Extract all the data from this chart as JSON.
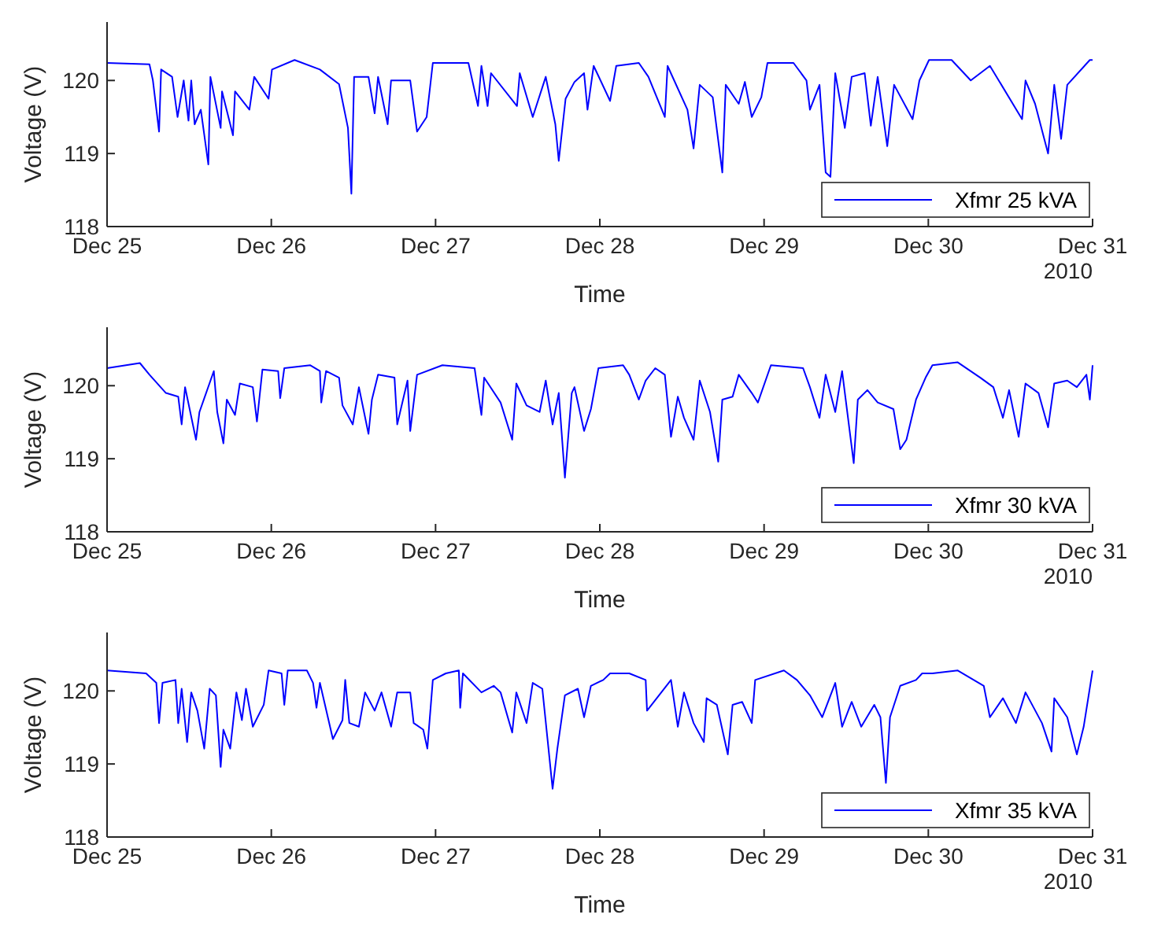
{
  "chart_data": [
    {
      "type": "line",
      "xlabel": "Time",
      "ylabel": "Voltage (V)",
      "annotations": [
        "2010"
      ],
      "legend": "bottom right",
      "xlim": [
        "2010-12-25",
        "2010-12-31"
      ],
      "xticks": [
        {
          "value": "2010-12-25",
          "label": "Dec 25"
        },
        {
          "value": "2010-12-26",
          "label": "Dec 26"
        },
        {
          "value": "2010-12-27",
          "label": "Dec 27"
        },
        {
          "value": "2010-12-28",
          "label": "Dec 28"
        },
        {
          "value": "2010-12-29",
          "label": "Dec 29"
        },
        {
          "value": "2010-12-30",
          "label": "Dec 30"
        },
        {
          "value": "2010-12-31",
          "label": "Dec 31"
        }
      ],
      "ylim": [
        118,
        120.8
      ],
      "yticks": [
        118,
        119,
        120
      ],
      "series": [
        {
          "name": "Xfmr 25 kVA",
          "color": "#0000ff",
          "x": [
            "2010-12-25T00:00",
            "2010-12-25T06:12",
            "2010-12-25T06:42",
            "2010-12-25T07:36",
            "2010-12-25T07:54",
            "2010-12-25T09:30",
            "2010-12-25T10:18",
            "2010-12-25T11:12",
            "2010-12-25T11:54",
            "2010-12-25T12:18",
            "2010-12-25T12:48",
            "2010-12-25T13:42",
            "2010-12-25T14:48",
            "2010-12-25T15:06",
            "2010-12-25T16:36",
            "2010-12-25T16:48",
            "2010-12-25T18:24",
            "2010-12-25T18:42",
            "2010-12-25T20:48",
            "2010-12-25T21:30",
            "2010-12-25T23:36",
            "2010-12-26T00:06",
            "2010-12-26T03:24",
            "2010-12-26T07:06",
            "2010-12-26T09:54",
            "2010-12-26T11:12",
            "2010-12-26T11:42",
            "2010-12-26T12:06",
            "2010-12-26T14:12",
            "2010-12-26T15:06",
            "2010-12-26T15:36",
            "2010-12-26T17:00",
            "2010-12-26T17:30",
            "2010-12-26T20:18",
            "2010-12-26T21:18",
            "2010-12-26T22:42",
            "2010-12-26T23:36",
            "2010-12-27T04:48",
            "2010-12-27T06:12",
            "2010-12-27T06:42",
            "2010-12-27T07:36",
            "2010-12-27T08:06",
            "2010-12-27T11:54",
            "2010-12-27T12:18",
            "2010-12-27T14:12",
            "2010-12-27T16:06",
            "2010-12-27T17:30",
            "2010-12-27T18:00",
            "2010-12-27T19:00",
            "2010-12-27T20:18",
            "2010-12-27T21:42",
            "2010-12-27T22:12",
            "2010-12-27T23:06",
            "2010-12-28T01:30",
            "2010-12-28T02:24",
            "2010-12-28T05:42",
            "2010-12-28T07:06",
            "2010-12-28T09:30",
            "2010-12-28T09:54",
            "2010-12-28T12:48",
            "2010-12-28T13:42",
            "2010-12-28T14:36",
            "2010-12-28T16:30",
            "2010-12-28T17:54",
            "2010-12-28T18:24",
            "2010-12-28T20:18",
            "2010-12-28T21:12",
            "2010-12-28T22:12",
            "2010-12-28T23:36",
            "2010-12-29T00:30",
            "2010-12-29T04:18",
            "2010-12-29T06:12",
            "2010-12-29T06:42",
            "2010-12-29T08:06",
            "2010-12-29T09:00",
            "2010-12-29T09:42",
            "2010-12-29T10:24",
            "2010-12-29T11:48",
            "2010-12-29T12:48",
            "2010-12-29T14:42",
            "2010-12-29T15:36",
            "2010-12-29T16:36",
            "2010-12-29T18:00",
            "2010-12-29T19:00",
            "2010-12-29T21:42",
            "2010-12-29T22:42",
            "2010-12-30T00:06",
            "2010-12-30T03:24",
            "2010-12-30T06:12",
            "2010-12-30T09:00",
            "2010-12-30T13:42",
            "2010-12-30T14:12",
            "2010-12-30T15:36",
            "2010-12-30T17:30",
            "2010-12-30T18:24",
            "2010-12-30T19:24",
            "2010-12-30T20:18",
            "2010-12-30T23:36",
            "2010-12-31T00:00"
          ],
          "values": [
            120.24,
            120.22,
            120.0,
            119.3,
            120.15,
            120.05,
            119.5,
            120.0,
            119.45,
            120.0,
            119.4,
            119.6,
            118.85,
            120.05,
            119.35,
            119.85,
            119.25,
            119.85,
            119.6,
            120.05,
            119.75,
            120.15,
            120.28,
            120.15,
            119.95,
            119.35,
            118.45,
            120.05,
            120.05,
            119.55,
            120.05,
            119.4,
            120.0,
            120.0,
            119.3,
            119.5,
            120.24,
            120.24,
            119.65,
            120.2,
            119.65,
            120.1,
            119.65,
            120.1,
            119.5,
            120.05,
            119.4,
            118.9,
            119.75,
            119.98,
            120.1,
            119.6,
            120.2,
            119.72,
            120.2,
            120.24,
            120.05,
            119.5,
            120.2,
            119.6,
            119.07,
            119.94,
            119.77,
            118.74,
            119.94,
            119.68,
            119.98,
            119.5,
            119.77,
            120.24,
            120.24,
            120.0,
            119.6,
            119.94,
            118.74,
            118.68,
            120.1,
            119.35,
            120.05,
            120.1,
            119.38,
            120.05,
            119.1,
            119.94,
            119.47,
            120.0,
            120.28,
            120.28,
            120.0,
            120.2,
            119.47,
            120.0,
            119.68,
            119.0,
            119.94,
            119.2,
            119.94,
            120.28,
            120.28
          ]
        }
      ]
    },
    {
      "type": "line",
      "xlabel": "Time",
      "ylabel": "Voltage (V)",
      "annotations": [
        "2010"
      ],
      "legend": "bottom right",
      "xlim": [
        "2010-12-25",
        "2010-12-31"
      ],
      "xticks": [
        {
          "value": "2010-12-25",
          "label": "Dec 25"
        },
        {
          "value": "2010-12-26",
          "label": "Dec 26"
        },
        {
          "value": "2010-12-27",
          "label": "Dec 27"
        },
        {
          "value": "2010-12-28",
          "label": "Dec 28"
        },
        {
          "value": "2010-12-29",
          "label": "Dec 29"
        },
        {
          "value": "2010-12-30",
          "label": "Dec 30"
        },
        {
          "value": "2010-12-31",
          "label": "Dec 31"
        }
      ],
      "ylim": [
        118,
        120.8
      ],
      "yticks": [
        118,
        119,
        120
      ],
      "series": [
        {
          "name": "Xfmr 30 kVA",
          "color": "#0000ff",
          "x": [
            "2010-12-25T00:00",
            "2010-12-25T04:48",
            "2010-12-25T06:12",
            "2010-12-25T08:36",
            "2010-12-25T10:24",
            "2010-12-25T10:54",
            "2010-12-25T11:24",
            "2010-12-25T13:00",
            "2010-12-25T13:30",
            "2010-12-25T15:36",
            "2010-12-25T16:06",
            "2010-12-25T17:00",
            "2010-12-25T17:30",
            "2010-12-25T18:42",
            "2010-12-25T19:24",
            "2010-12-25T21:18",
            "2010-12-25T21:54",
            "2010-12-25T22:42",
            "2010-12-26T01:00",
            "2010-12-26T01:18",
            "2010-12-26T01:54",
            "2010-12-26T05:42",
            "2010-12-26T07:06",
            "2010-12-26T07:18",
            "2010-12-26T08:00",
            "2010-12-26T09:54",
            "2010-12-26T10:24",
            "2010-12-26T11:54",
            "2010-12-26T12:48",
            "2010-12-26T14:12",
            "2010-12-26T14:42",
            "2010-12-26T15:36",
            "2010-12-26T18:00",
            "2010-12-26T18:24",
            "2010-12-26T19:54",
            "2010-12-26T20:18",
            "2010-12-26T21:18",
            "2010-12-27T01:00",
            "2010-12-27T05:42",
            "2010-12-27T06:42",
            "2010-12-27T07:06",
            "2010-12-27T09:30",
            "2010-12-27T11:12",
            "2010-12-27T11:48",
            "2010-12-27T13:18",
            "2010-12-27T15:12",
            "2010-12-27T16:06",
            "2010-12-27T17:06",
            "2010-12-27T18:00",
            "2010-12-27T18:54",
            "2010-12-27T19:54",
            "2010-12-27T20:18",
            "2010-12-27T21:42",
            "2010-12-27T22:42",
            "2010-12-27T23:48",
            "2010-12-28T03:24",
            "2010-12-28T04:18",
            "2010-12-28T05:42",
            "2010-12-28T06:42",
            "2010-12-28T08:06",
            "2010-12-28T09:30",
            "2010-12-28T10:24",
            "2010-12-28T11:24",
            "2010-12-28T12:18",
            "2010-12-28T13:42",
            "2010-12-28T14:36",
            "2010-12-28T16:06",
            "2010-12-28T17:18",
            "2010-12-28T17:54",
            "2010-12-28T19:24",
            "2010-12-28T20:18",
            "2010-12-28T22:12",
            "2010-12-28T23:06",
            "2010-12-29T01:00",
            "2010-12-29T05:42",
            "2010-12-29T06:42",
            "2010-12-29T08:06",
            "2010-12-29T09:00",
            "2010-12-29T10:24",
            "2010-12-29T11:24",
            "2010-12-29T13:06",
            "2010-12-29T13:42",
            "2010-12-29T15:06",
            "2010-12-29T16:36",
            "2010-12-29T18:54",
            "2010-12-29T19:54",
            "2010-12-29T20:48",
            "2010-12-29T22:12",
            "2010-12-29T23:36",
            "2010-12-30T00:36",
            "2010-12-30T04:18",
            "2010-12-30T07:36",
            "2010-12-30T09:30",
            "2010-12-30T10:54",
            "2010-12-30T11:48",
            "2010-12-30T13:12",
            "2010-12-30T14:12",
            "2010-12-30T16:06",
            "2010-12-30T17:30",
            "2010-12-30T18:24",
            "2010-12-30T20:18",
            "2010-12-30T21:42",
            "2010-12-30T23:06",
            "2010-12-30T23:36",
            "2010-12-31T00:00"
          ],
          "values": [
            120.24,
            120.31,
            120.15,
            119.9,
            119.85,
            119.47,
            119.98,
            119.26,
            119.64,
            120.2,
            119.64,
            119.21,
            119.81,
            119.6,
            120.03,
            119.98,
            119.51,
            120.22,
            120.2,
            119.83,
            120.24,
            120.28,
            120.2,
            119.77,
            120.2,
            120.11,
            119.73,
            119.47,
            119.98,
            119.34,
            119.81,
            120.15,
            120.11,
            119.47,
            120.07,
            119.38,
            120.15,
            120.28,
            120.24,
            119.6,
            120.11,
            119.77,
            119.26,
            120.03,
            119.73,
            119.64,
            120.07,
            119.47,
            119.9,
            118.74,
            119.9,
            119.98,
            119.38,
            119.68,
            120.24,
            120.28,
            120.15,
            119.81,
            120.07,
            120.24,
            120.15,
            119.3,
            119.85,
            119.56,
            119.26,
            120.07,
            119.64,
            118.96,
            119.81,
            119.85,
            120.15,
            119.9,
            119.77,
            120.28,
            120.24,
            119.98,
            119.56,
            120.15,
            119.64,
            120.2,
            118.94,
            119.81,
            119.94,
            119.77,
            119.68,
            119.13,
            119.26,
            119.81,
            120.11,
            120.28,
            120.32,
            120.11,
            119.98,
            119.56,
            119.94,
            119.3,
            120.03,
            119.9,
            119.43,
            120.03,
            120.07,
            119.98,
            120.15,
            119.81,
            120.28
          ]
        }
      ]
    },
    {
      "type": "line",
      "xlabel": "Time",
      "ylabel": "Voltage (V)",
      "annotations": [
        "2010"
      ],
      "legend": "bottom right",
      "xlim": [
        "2010-12-25",
        "2010-12-31"
      ],
      "xticks": [
        {
          "value": "2010-12-25",
          "label": "Dec 25"
        },
        {
          "value": "2010-12-26",
          "label": "Dec 26"
        },
        {
          "value": "2010-12-27",
          "label": "Dec 27"
        },
        {
          "value": "2010-12-28",
          "label": "Dec 28"
        },
        {
          "value": "2010-12-29",
          "label": "Dec 29"
        },
        {
          "value": "2010-12-30",
          "label": "Dec 30"
        },
        {
          "value": "2010-12-31",
          "label": "Dec 31"
        }
      ],
      "ylim": [
        118,
        120.8
      ],
      "yticks": [
        118,
        119,
        120
      ],
      "series": [
        {
          "name": "Xfmr 35 kVA",
          "color": "#0000ff",
          "x": [
            "2010-12-25T00:00",
            "2010-12-25T05:42",
            "2010-12-25T07:12",
            "2010-12-25T07:36",
            "2010-12-25T08:06",
            "2010-12-25T10:00",
            "2010-12-25T10:24",
            "2010-12-25T10:54",
            "2010-12-25T11:42",
            "2010-12-25T12:18",
            "2010-12-25T13:12",
            "2010-12-25T14:12",
            "2010-12-25T15:00",
            "2010-12-25T15:54",
            "2010-12-25T16:36",
            "2010-12-25T17:00",
            "2010-12-25T18:00",
            "2010-12-25T18:54",
            "2010-12-25T19:42",
            "2010-12-25T20:18",
            "2010-12-25T21:18",
            "2010-12-25T22:54",
            "2010-12-25T23:36",
            "2010-12-26T01:30",
            "2010-12-26T01:54",
            "2010-12-26T02:24",
            "2010-12-26T05:12",
            "2010-12-26T06:06",
            "2010-12-26T06:36",
            "2010-12-26T07:06",
            "2010-12-26T09:00",
            "2010-12-26T10:24",
            "2010-12-26T10:48",
            "2010-12-26T11:24",
            "2010-12-26T12:48",
            "2010-12-26T13:42",
            "2010-12-26T15:06",
            "2010-12-26T16:06",
            "2010-12-26T17:30",
            "2010-12-26T18:24",
            "2010-12-26T20:18",
            "2010-12-26T20:48",
            "2010-12-26T22:12",
            "2010-12-26T22:48",
            "2010-12-26T23:36",
            "2010-12-27T01:30",
            "2010-12-27T03:24",
            "2010-12-27T03:36",
            "2010-12-27T04:00",
            "2010-12-27T06:42",
            "2010-12-27T08:30",
            "2010-12-27T09:30",
            "2010-12-27T11:12",
            "2010-12-27T11:48",
            "2010-12-27T13:18",
            "2010-12-27T14:12",
            "2010-12-27T15:36",
            "2010-12-27T16:30",
            "2010-12-27T17:06",
            "2010-12-27T17:48",
            "2010-12-27T18:54",
            "2010-12-27T20:48",
            "2010-12-27T21:42",
            "2010-12-27T22:42",
            "2010-12-28T00:30",
            "2010-12-28T01:30",
            "2010-12-28T04:18",
            "2010-12-28T06:42",
            "2010-12-28T06:54",
            "2010-12-28T10:24",
            "2010-12-28T11:24",
            "2010-12-28T12:18",
            "2010-12-28T13:42",
            "2010-12-28T15:12",
            "2010-12-28T15:36",
            "2010-12-28T17:06",
            "2010-12-28T18:42",
            "2010-12-28T19:24",
            "2010-12-28T20:48",
            "2010-12-28T22:12",
            "2010-12-28T22:42",
            "2010-12-29T02:54",
            "2010-12-29T04:48",
            "2010-12-29T06:42",
            "2010-12-29T08:30",
            "2010-12-29T10:24",
            "2010-12-29T11:24",
            "2010-12-29T12:48",
            "2010-12-29T14:12",
            "2010-12-29T16:06",
            "2010-12-29T17:00",
            "2010-12-29T17:48",
            "2010-12-29T18:24",
            "2010-12-29T19:54",
            "2010-12-29T22:12",
            "2010-12-29T23:06",
            "2010-12-30T00:36",
            "2010-12-30T04:18",
            "2010-12-30T08:06",
            "2010-12-30T09:00",
            "2010-12-30T10:54",
            "2010-12-30T12:48",
            "2010-12-30T14:12",
            "2010-12-30T16:36",
            "2010-12-30T18:00",
            "2010-12-30T18:24",
            "2010-12-30T20:18",
            "2010-12-30T21:42",
            "2010-12-30T22:42",
            "2010-12-31T00:00"
          ],
          "values": [
            120.28,
            120.24,
            120.11,
            119.56,
            120.11,
            120.15,
            119.56,
            120.03,
            119.3,
            119.98,
            119.73,
            119.21,
            120.03,
            119.94,
            118.96,
            119.47,
            119.21,
            119.98,
            119.6,
            120.03,
            119.51,
            119.81,
            120.28,
            120.24,
            119.81,
            120.28,
            120.28,
            120.11,
            119.77,
            120.11,
            119.34,
            119.6,
            120.15,
            119.56,
            119.51,
            119.98,
            119.73,
            119.98,
            119.51,
            119.98,
            119.98,
            119.56,
            119.47,
            119.21,
            120.15,
            120.24,
            120.28,
            119.77,
            120.24,
            119.98,
            120.07,
            119.98,
            119.43,
            119.98,
            119.56,
            120.11,
            120.03,
            119.21,
            118.66,
            119.21,
            119.94,
            120.03,
            119.64,
            120.07,
            120.15,
            120.24,
            120.24,
            120.15,
            119.73,
            120.15,
            119.51,
            119.98,
            119.56,
            119.3,
            119.9,
            119.81,
            119.13,
            119.81,
            119.85,
            119.56,
            120.15,
            120.28,
            120.15,
            119.94,
            119.64,
            120.11,
            119.51,
            119.85,
            119.51,
            119.81,
            119.64,
            118.74,
            119.64,
            120.07,
            120.15,
            120.24,
            120.24,
            120.28,
            120.07,
            119.64,
            119.9,
            119.56,
            119.98,
            119.56,
            119.17,
            119.9,
            119.64,
            119.13,
            119.51,
            120.28
          ]
        }
      ]
    }
  ]
}
